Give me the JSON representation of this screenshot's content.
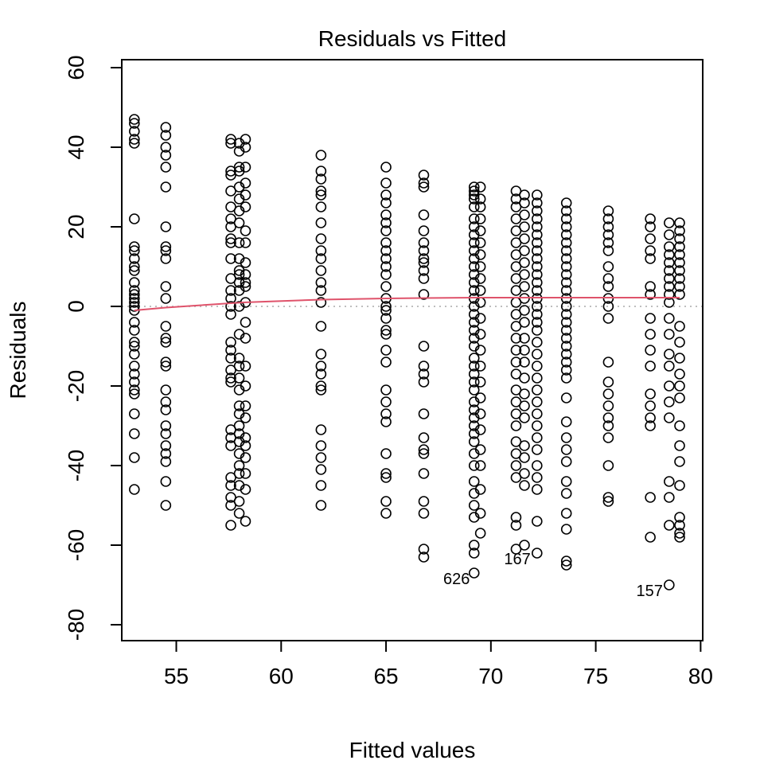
{
  "chart_data": {
    "type": "scatter",
    "title": "Residuals vs Fitted",
    "xlabel": "Fitted values",
    "ylabel": "Residuals",
    "xlim": [
      52.4,
      80.1
    ],
    "ylim": [
      -84,
      62
    ],
    "x_ticks": [
      55,
      60,
      65,
      70,
      75,
      80
    ],
    "y_ticks": [
      -80,
      -60,
      -40,
      -20,
      0,
      20,
      40,
      60
    ],
    "x_tick_labels": [
      "55",
      "60",
      "65",
      "70",
      "75",
      "80"
    ],
    "y_tick_labels": [
      "-80",
      "-60",
      "-40",
      "-20",
      "0",
      "20",
      "40",
      "60"
    ],
    "grid": false,
    "reference_line": {
      "y": 0,
      "style": "dotted",
      "color": "#bebebe"
    },
    "smoother": {
      "color": "#df536b",
      "x": [
        53.0,
        54.5,
        57.6,
        58.2,
        61.9,
        65.0,
        66.8,
        69.2,
        71.4,
        72.2,
        73.6,
        75.6,
        77.6,
        79.0
      ],
      "y": [
        -1.0,
        -0.3,
        0.8,
        1.0,
        1.7,
        2.0,
        2.1,
        2.2,
        2.2,
        2.2,
        2.2,
        2.2,
        2.2,
        2.2
      ]
    },
    "series": [
      {
        "x": 53.0,
        "residuals": [
          47,
          46,
          44,
          42,
          41,
          22,
          15,
          14,
          12,
          10,
          9,
          6,
          4,
          3,
          2,
          1,
          0,
          -1,
          -4,
          -6,
          -9,
          -10,
          -12,
          -15,
          -17,
          -19,
          -21,
          -22,
          -27,
          -32,
          -38,
          -46
        ]
      },
      {
        "x": 54.5,
        "residuals": [
          45,
          43,
          40,
          38,
          35,
          30,
          20,
          15,
          14,
          12,
          5,
          2,
          -5,
          -8,
          -9,
          -14,
          -15,
          -21,
          -24,
          -26,
          -30,
          -32,
          -35,
          -37,
          -39,
          -44,
          -50
        ]
      },
      {
        "x": 57.6,
        "residuals": [
          42,
          41,
          34,
          33,
          29,
          25,
          22,
          20,
          17,
          16,
          12,
          7,
          4,
          2,
          0,
          -2,
          -9,
          -11,
          -13,
          -16,
          -18,
          -19,
          -31,
          -33,
          -35,
          -43,
          -45,
          -48,
          -50,
          -55
        ]
      },
      {
        "x": 58.0,
        "residuals": [
          41,
          39,
          35,
          34,
          30,
          27,
          24,
          21,
          16,
          12,
          9,
          8,
          6,
          4,
          0,
          -7,
          -13,
          -15,
          -18,
          -21,
          -25,
          -27,
          -30,
          -32,
          -34,
          -37,
          -40,
          -42,
          -45,
          -49,
          -52
        ]
      },
      {
        "x": 58.3,
        "residuals": [
          42,
          40,
          35,
          31,
          28,
          25,
          19,
          16,
          11,
          8,
          6,
          5,
          1,
          -4,
          -8,
          -15,
          -20,
          -25,
          -28,
          -33,
          -35,
          -38,
          -42,
          -46,
          -54
        ]
      },
      {
        "x": 61.9,
        "residuals": [
          38,
          34,
          32,
          29,
          28,
          25,
          21,
          17,
          14,
          12,
          9,
          6,
          4,
          1,
          -5,
          -12,
          -15,
          -17,
          -20,
          -21,
          -31,
          -35,
          -38,
          -41,
          -45,
          -50
        ]
      },
      {
        "x": 65.0,
        "residuals": [
          35,
          31,
          28,
          26,
          23,
          21,
          19,
          16,
          14,
          12,
          10,
          8,
          5,
          2,
          0,
          -1,
          -3,
          -6,
          -7,
          -11,
          -14,
          -21,
          -24,
          -27,
          -29,
          -37,
          -42,
          -43,
          -49,
          -52
        ]
      },
      {
        "x": 66.8,
        "residuals": [
          33,
          31,
          30,
          23,
          19,
          16,
          14,
          12,
          11,
          9,
          7,
          3,
          -10,
          -15,
          -17,
          -19,
          -27,
          -33,
          -36,
          -37,
          -42,
          -49,
          -52,
          -61,
          -63
        ]
      },
      {
        "x": 69.2,
        "residuals": [
          30,
          29,
          28,
          27,
          25,
          22,
          20,
          18,
          16,
          14,
          12,
          10,
          8,
          6,
          4,
          2,
          0,
          -2,
          -4,
          -6,
          -8,
          -10,
          -13,
          -15,
          -17,
          -19,
          -21,
          -24,
          -26,
          -28,
          -30,
          -32,
          -34,
          -37,
          -40,
          -44,
          -47,
          -50,
          -53,
          -60,
          -62,
          -67
        ]
      },
      {
        "x": 69.5,
        "residuals": [
          30,
          27,
          25,
          22,
          19,
          16,
          13,
          10,
          7,
          4,
          1,
          -3,
          -7,
          -11,
          -15,
          -19,
          -23,
          -27,
          -31,
          -36,
          -40,
          -46,
          -52,
          -57
        ]
      },
      {
        "x": 71.2,
        "residuals": [
          29,
          27,
          25,
          22,
          19,
          16,
          13,
          10,
          7,
          4,
          1,
          -2,
          -5,
          -8,
          -11,
          -14,
          -17,
          -21,
          -24,
          -27,
          -30,
          -34,
          -37,
          -40,
          -43,
          -53,
          -55,
          -61
        ]
      },
      {
        "x": 71.6,
        "residuals": [
          28,
          26,
          23,
          20,
          17,
          14,
          11,
          8,
          5,
          2,
          -1,
          -4,
          -8,
          -11,
          -14,
          -18,
          -22,
          -25,
          -28,
          -35,
          -38,
          -42,
          -45,
          -60
        ]
      },
      {
        "x": 72.2,
        "residuals": [
          28,
          26,
          24,
          22,
          20,
          18,
          16,
          14,
          12,
          10,
          8,
          6,
          4,
          2,
          0,
          -2,
          -4,
          -6,
          -9,
          -12,
          -15,
          -18,
          -21,
          -24,
          -27,
          -30,
          -33,
          -36,
          -40,
          -43,
          -46,
          -54,
          -62
        ]
      },
      {
        "x": 73.6,
        "residuals": [
          26,
          24,
          22,
          20,
          18,
          16,
          14,
          12,
          10,
          8,
          6,
          4,
          2,
          0,
          -2,
          -4,
          -6,
          -8,
          -10,
          -12,
          -14,
          -16,
          -18,
          -23,
          -29,
          -33,
          -36,
          -39,
          -44,
          -47,
          -52,
          -56,
          -64,
          -65
        ]
      },
      {
        "x": 75.6,
        "residuals": [
          24,
          22,
          20,
          18,
          16,
          14,
          10,
          7,
          5,
          2,
          0,
          -3,
          -14,
          -19,
          -22,
          -25,
          -28,
          -30,
          -33,
          -40,
          -48,
          -49
        ]
      },
      {
        "x": 77.6,
        "residuals": [
          22,
          20,
          17,
          14,
          12,
          5,
          3,
          -3,
          -7,
          -11,
          -15,
          -22,
          -25,
          -28,
          -30,
          -48,
          -58
        ]
      },
      {
        "x": 78.5,
        "residuals": [
          21,
          18,
          15,
          13,
          11,
          9,
          7,
          5,
          3,
          1,
          -3,
          -7,
          -12,
          -15,
          -20,
          -24,
          -28,
          -44,
          -48,
          -55,
          -70
        ]
      },
      {
        "x": 79.0,
        "residuals": [
          21,
          19,
          17,
          15,
          13,
          11,
          9,
          7,
          5,
          3,
          -5,
          -9,
          -13,
          -17,
          -20,
          -23,
          -30,
          -35,
          -39,
          -45,
          -53,
          -55,
          -57,
          -58
        ]
      }
    ],
    "annotations": [
      {
        "text": "626",
        "x": 69.3,
        "y": -67
      },
      {
        "text": "167",
        "x": 72.2,
        "y": -62
      },
      {
        "text": "157",
        "x": 78.5,
        "y": -70
      }
    ]
  }
}
